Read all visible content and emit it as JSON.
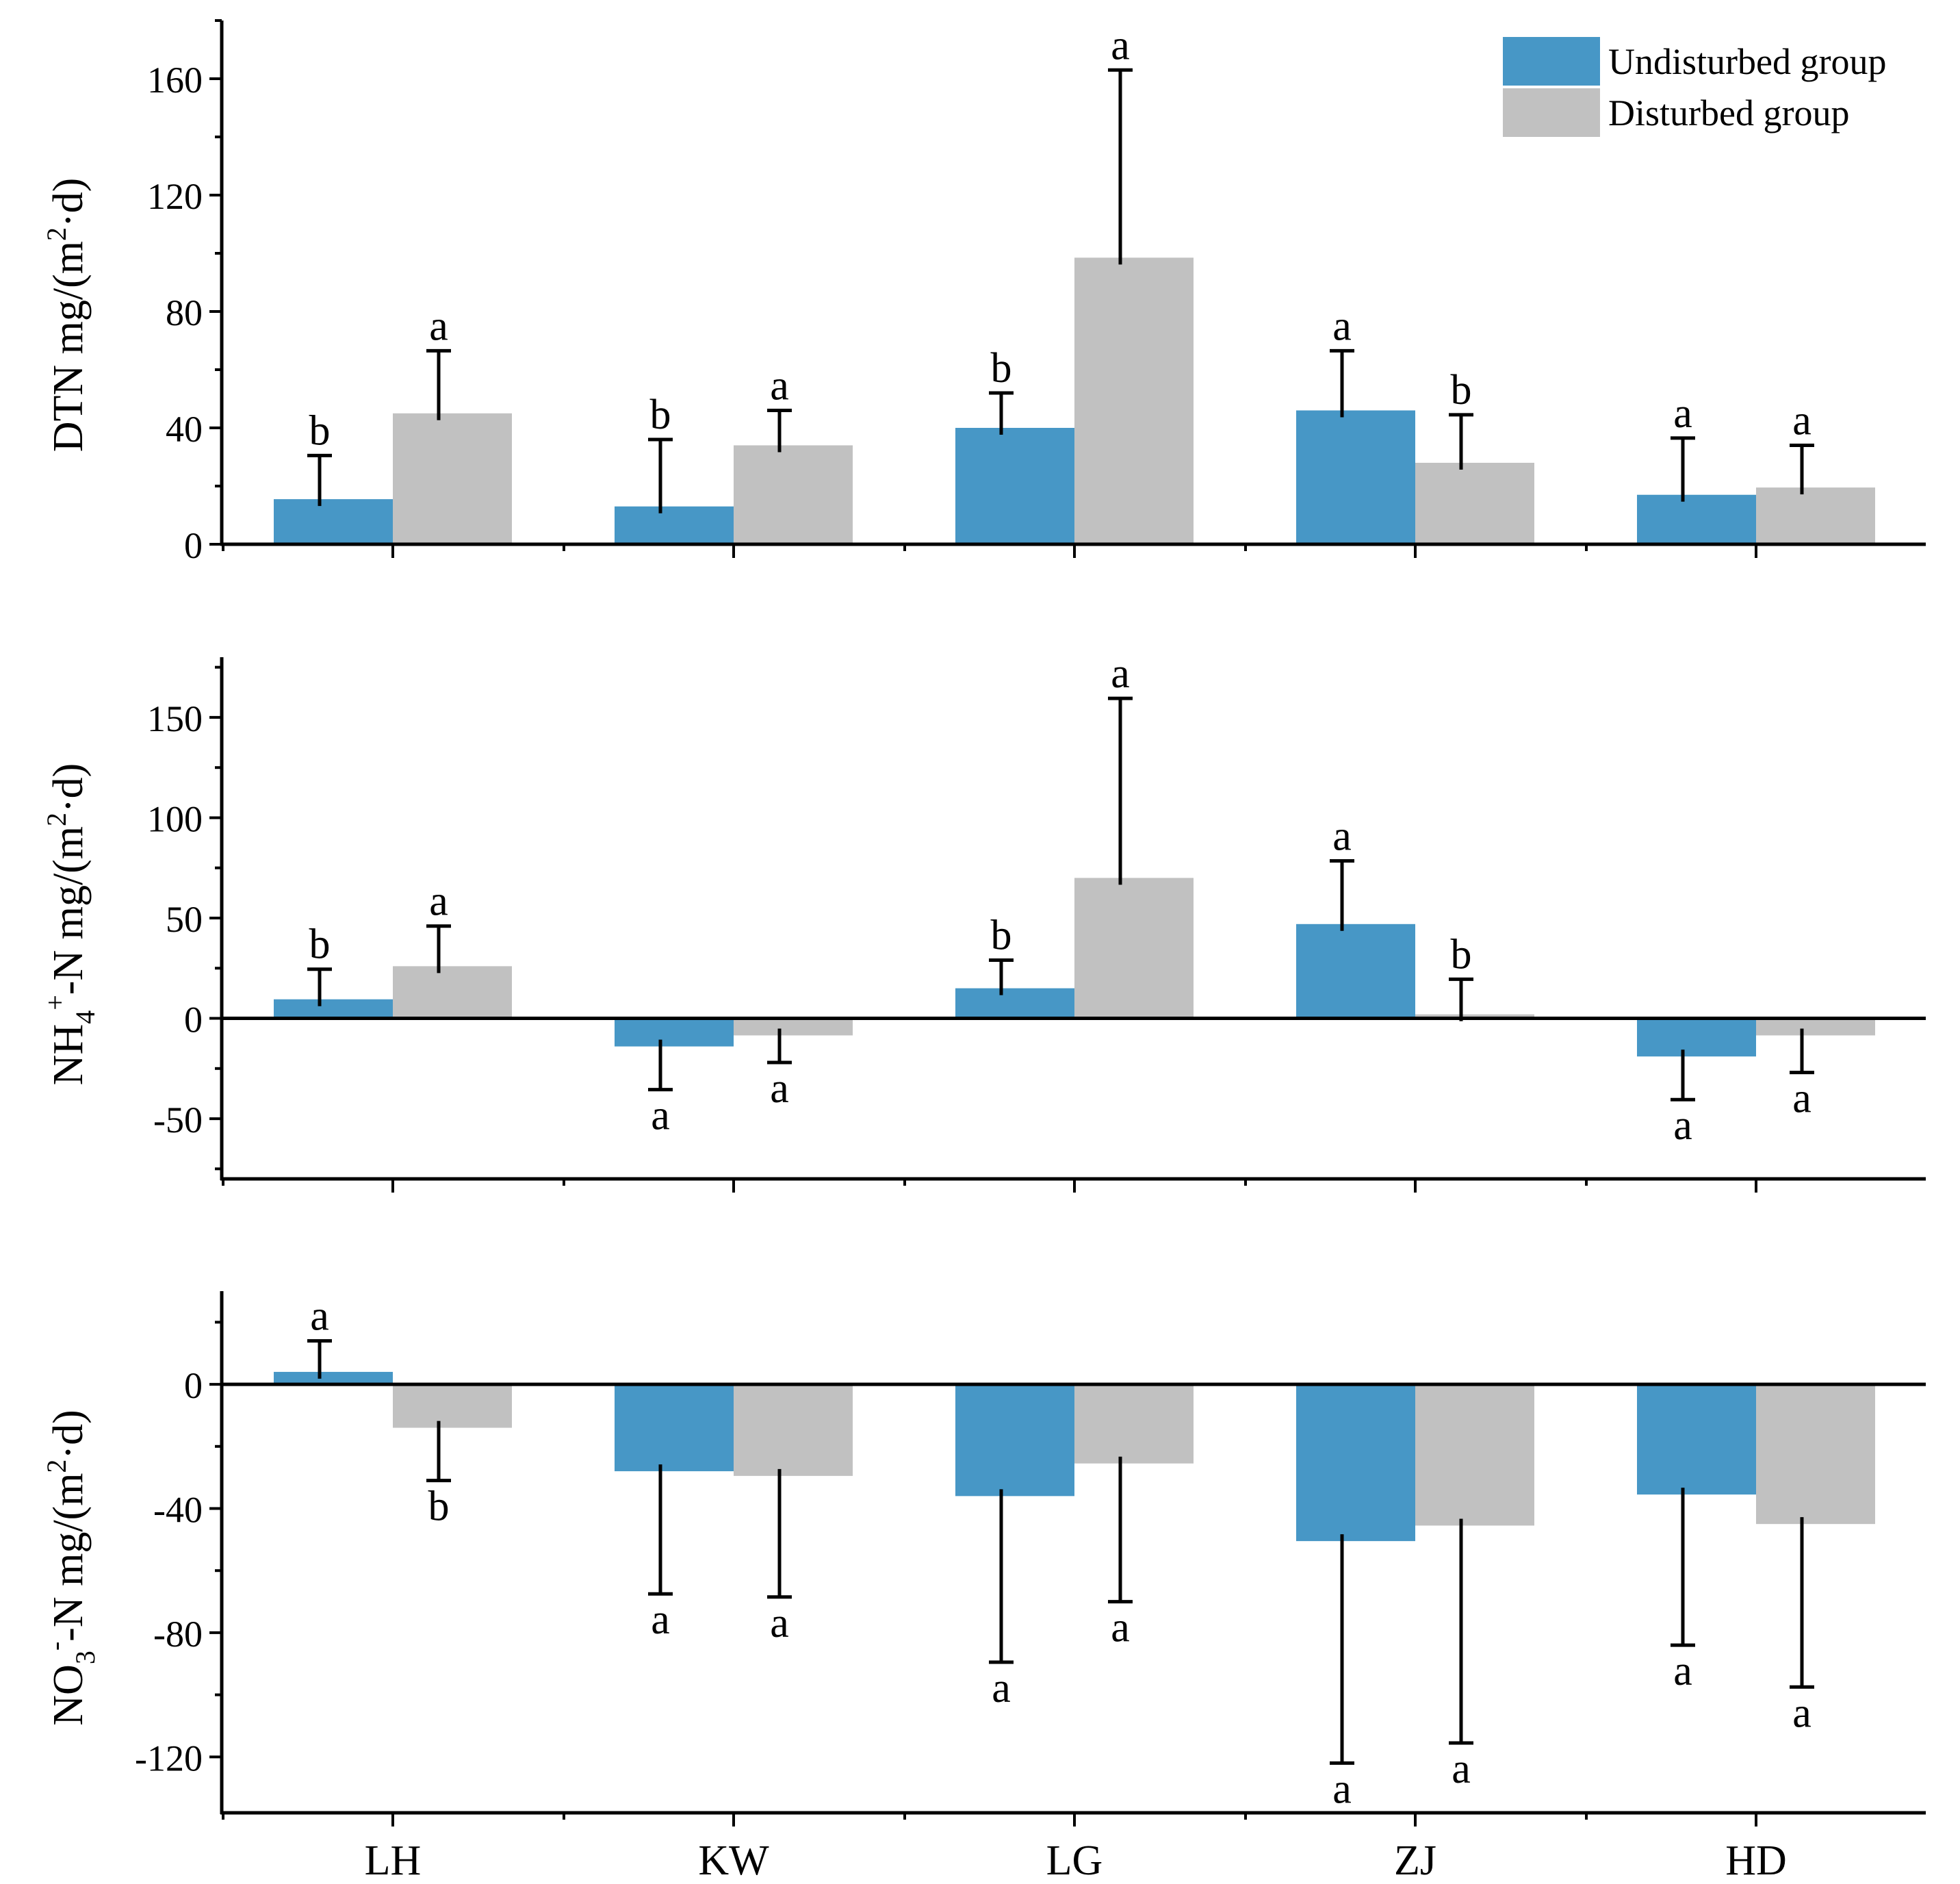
{
  "colors": {
    "undisturbed": "#4797c6",
    "disturbed": "#c1c1c1",
    "axis": "#000000"
  },
  "legend": {
    "undisturbed_label": "Undisturbed group",
    "disturbed_label": "Disturbed group",
    "position": "top-right"
  },
  "categories": [
    "LH",
    "KW",
    "LG",
    "ZJ",
    "HD"
  ],
  "chart_data": [
    {
      "type": "bar",
      "panel": "DTN",
      "ylabel_main": "DTN mg/(m",
      "ylabel_sup": "2",
      "ylabel_tail": "·d)",
      "ylim": [
        0,
        180
      ],
      "yticks": [
        0,
        40,
        80,
        120,
        160
      ],
      "ytick_labels": [
        "0",
        "40",
        "80",
        "120",
        "160"
      ],
      "categories": [
        "LH",
        "KW",
        "LG",
        "ZJ",
        "HD"
      ],
      "series": [
        {
          "name": "Undisturbed group",
          "values": [
            15.5,
            13,
            40,
            46,
            17
          ],
          "errors": [
            15,
            23,
            12,
            20.5,
            19.5
          ],
          "letters": [
            "b",
            "b",
            "b",
            "a",
            "a"
          ]
        },
        {
          "name": "Disturbed group",
          "values": [
            45,
            34,
            98.5,
            28,
            19.5
          ],
          "errors": [
            21.5,
            12,
            64.5,
            16.5,
            14.5
          ],
          "letters": [
            "a",
            "a",
            "a",
            "b",
            "a"
          ]
        }
      ]
    },
    {
      "type": "bar",
      "panel": "NH4+-N",
      "ylabel_pre": "NH",
      "ylabel_sub": "4",
      "ylabel_sup": "+",
      "ylabel_mid": "-N  mg/(m",
      "ylabel_sup2": "2",
      "ylabel_tail": "·d)",
      "ylim": [
        -80,
        180
      ],
      "yticks": [
        -50,
        0,
        50,
        100,
        150
      ],
      "ytick_labels": [
        "-50",
        "0",
        "50",
        "100",
        "150"
      ],
      "categories": [
        "LH",
        "KW",
        "LG",
        "ZJ",
        "HD"
      ],
      "series": [
        {
          "name": "Undisturbed group",
          "values": [
            9.5,
            -14,
            15,
            47,
            -19
          ],
          "errors": [
            15,
            21.5,
            14,
            31.5,
            21.5
          ],
          "letters": [
            "b",
            "a",
            "b",
            "a",
            "a"
          ]
        },
        {
          "name": "Disturbed group",
          "values": [
            26,
            -8.5,
            70,
            2,
            -8.5
          ],
          "errors": [
            20,
            13.5,
            89.5,
            17.5,
            18.5
          ],
          "letters": [
            "a",
            "a",
            "a",
            "b",
            "a"
          ]
        }
      ]
    },
    {
      "type": "bar",
      "panel": "NO3--N",
      "ylabel_pre": "NO",
      "ylabel_sub": "3",
      "ylabel_sup": "-",
      "ylabel_mid": "-N  mg/(m",
      "ylabel_sup2": "2",
      "ylabel_tail": "·d)",
      "ylim": [
        -138,
        30
      ],
      "yticks": [
        -120,
        -80,
        -40,
        0
      ],
      "ytick_labels": [
        "-120",
        "-80",
        "-40",
        "0"
      ],
      "categories": [
        "LH",
        "KW",
        "LG",
        "ZJ",
        "HD"
      ],
      "series": [
        {
          "name": "Undisturbed group",
          "values": [
            4,
            -28,
            -36,
            -50.5,
            -35.5
          ],
          "errors": [
            10,
            39.5,
            53.5,
            71.5,
            48.5
          ],
          "letters": [
            "a",
            "a",
            "a",
            "a",
            "a"
          ]
        },
        {
          "name": "Disturbed group",
          "values": [
            -14,
            -29.5,
            -25.5,
            -45.5,
            -45
          ],
          "errors": [
            17,
            39,
            44.5,
            70,
            52.5
          ],
          "letters": [
            "b",
            "a",
            "a",
            "a",
            "a"
          ]
        }
      ]
    }
  ]
}
